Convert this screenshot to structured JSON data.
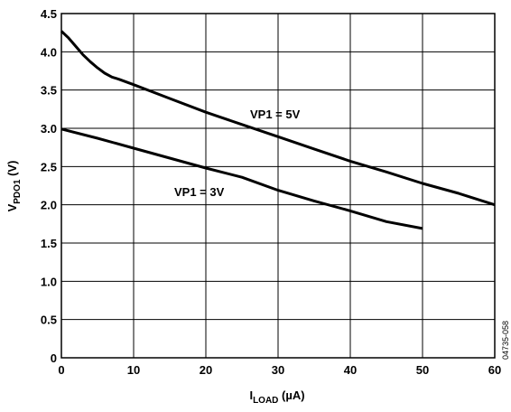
{
  "chart_data": {
    "type": "line",
    "xlabel": {
      "main": "I",
      "sub": "LOAD",
      "unit": " (µA)"
    },
    "ylabel": {
      "main": "V",
      "sub": "PDO1",
      "unit": " (V)"
    },
    "xlim": [
      0,
      60
    ],
    "ylim": [
      0,
      4.5
    ],
    "xticks": [
      "0",
      "10",
      "20",
      "30",
      "40",
      "50",
      "60"
    ],
    "yticks": [
      "0",
      "0.5",
      "1.0",
      "1.5",
      "2.0",
      "2.5",
      "3.0",
      "3.5",
      "4.0",
      "4.5"
    ],
    "grid": true,
    "series": [
      {
        "label": "VP1 = 5V",
        "x": [
          0,
          1,
          2,
          3,
          4,
          5,
          6,
          7,
          8,
          10,
          15,
          20,
          25,
          30,
          35,
          40,
          45,
          50,
          55,
          60
        ],
        "y": [
          4.27,
          4.18,
          4.07,
          3.96,
          3.87,
          3.79,
          3.72,
          3.67,
          3.64,
          3.57,
          3.39,
          3.21,
          3.05,
          2.89,
          2.73,
          2.57,
          2.43,
          2.28,
          2.15,
          2.0
        ]
      },
      {
        "label": "VP1 = 3V",
        "x": [
          0,
          5,
          10,
          15,
          20,
          25,
          30,
          35,
          40,
          45,
          50
        ],
        "y": [
          2.99,
          2.87,
          2.74,
          2.61,
          2.48,
          2.36,
          2.19,
          2.05,
          1.92,
          1.78,
          1.69
        ]
      }
    ],
    "annotations": [
      "VP1 = 5V",
      "VP1 = 3V"
    ],
    "code": "04735-058"
  }
}
